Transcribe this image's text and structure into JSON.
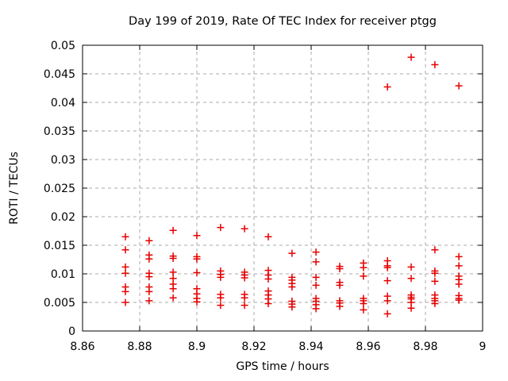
{
  "window": {
    "background": "#ffffff"
  },
  "chart_data": {
    "type": "scatter",
    "title": "Day 199 of 2019, Rate Of TEC Index for receiver ptgg",
    "xlabel": "GPS time / hours",
    "ylabel": "ROTI / TECUs",
    "xlim": [
      8.86,
      9
    ],
    "ylim": [
      0,
      0.05
    ],
    "grid": true,
    "legend_position": "none",
    "marker": {
      "shape": "plus",
      "color": "#e60000",
      "size": 9
    },
    "xticks": [
      {
        "v": 8.86,
        "label": "8.86"
      },
      {
        "v": 8.88,
        "label": "8.88"
      },
      {
        "v": 8.9,
        "label": "8.9"
      },
      {
        "v": 8.92,
        "label": "8.92"
      },
      {
        "v": 8.94,
        "label": "8.94"
      },
      {
        "v": 8.96,
        "label": "8.96"
      },
      {
        "v": 8.98,
        "label": "8.98"
      },
      {
        "v": 9.0,
        "label": "9"
      }
    ],
    "yticks": [
      {
        "v": 0,
        "label": "0"
      },
      {
        "v": 0.005,
        "label": "0.005"
      },
      {
        "v": 0.01,
        "label": "0.01"
      },
      {
        "v": 0.015,
        "label": "0.015"
      },
      {
        "v": 0.02,
        "label": "0.02"
      },
      {
        "v": 0.025,
        "label": "0.025"
      },
      {
        "v": 0.03,
        "label": "0.03"
      },
      {
        "v": 0.035,
        "label": "0.035"
      },
      {
        "v": 0.04,
        "label": "0.04"
      },
      {
        "v": 0.045,
        "label": "0.045"
      },
      {
        "v": 0.05,
        "label": "0.05"
      }
    ],
    "series": [
      {
        "t": 8.875,
        "roti": [
          0.0165,
          0.0142,
          0.0112,
          0.0101,
          0.0077,
          0.0069,
          0.005
        ]
      },
      {
        "t": 8.8833,
        "roti": [
          0.0158,
          0.0133,
          0.0126,
          0.0101,
          0.0095,
          0.0077,
          0.0069,
          0.0053
        ]
      },
      {
        "t": 8.8917,
        "roti": [
          0.0176,
          0.0131,
          0.0127,
          0.0103,
          0.0092,
          0.0082,
          0.0074,
          0.0058
        ]
      },
      {
        "t": 8.9,
        "roti": [
          0.0167,
          0.013,
          0.0126,
          0.0102,
          0.0074,
          0.0065,
          0.0057,
          0.0051
        ]
      },
      {
        "t": 8.9083,
        "roti": [
          0.0181,
          0.0105,
          0.0099,
          0.0094,
          0.0064,
          0.0058,
          0.0045
        ]
      },
      {
        "t": 8.9167,
        "roti": [
          0.0179,
          0.0103,
          0.0098,
          0.0093,
          0.0064,
          0.0058,
          0.0045
        ]
      },
      {
        "t": 8.925,
        "roti": [
          0.0165,
          0.0106,
          0.0098,
          0.0091,
          0.007,
          0.0063,
          0.0056,
          0.0048
        ]
      },
      {
        "t": 8.9333,
        "roti": [
          0.0136,
          0.0094,
          0.0089,
          0.0083,
          0.0077,
          0.0052,
          0.0047,
          0.0042
        ]
      },
      {
        "t": 8.9417,
        "roti": [
          0.0138,
          0.0121,
          0.0094,
          0.008,
          0.0057,
          0.0052,
          0.0046,
          0.0039
        ]
      },
      {
        "t": 8.95,
        "roti": [
          0.0113,
          0.0109,
          0.0085,
          0.008,
          0.0053,
          0.0049,
          0.0043
        ]
      },
      {
        "t": 8.9583,
        "roti": [
          0.0119,
          0.0111,
          0.0096,
          0.0057,
          0.0053,
          0.0048,
          0.0037
        ]
      },
      {
        "t": 8.9667,
        "roti": [
          0.0427,
          0.0123,
          0.0114,
          0.0111,
          0.0088,
          0.0061,
          0.0053,
          0.003
        ]
      },
      {
        "t": 8.975,
        "roti": [
          0.0479,
          0.0112,
          0.0092,
          0.0063,
          0.0059,
          0.0056,
          0.005,
          0.004
        ]
      },
      {
        "t": 8.9833,
        "roti": [
          0.0466,
          0.0142,
          0.0105,
          0.0101,
          0.0087,
          0.0063,
          0.0057,
          0.0053,
          0.0048
        ]
      },
      {
        "t": 8.9917,
        "roti": [
          0.0429,
          0.013,
          0.0114,
          0.0096,
          0.009,
          0.0082,
          0.0062,
          0.0057,
          0.0054
        ]
      }
    ]
  }
}
